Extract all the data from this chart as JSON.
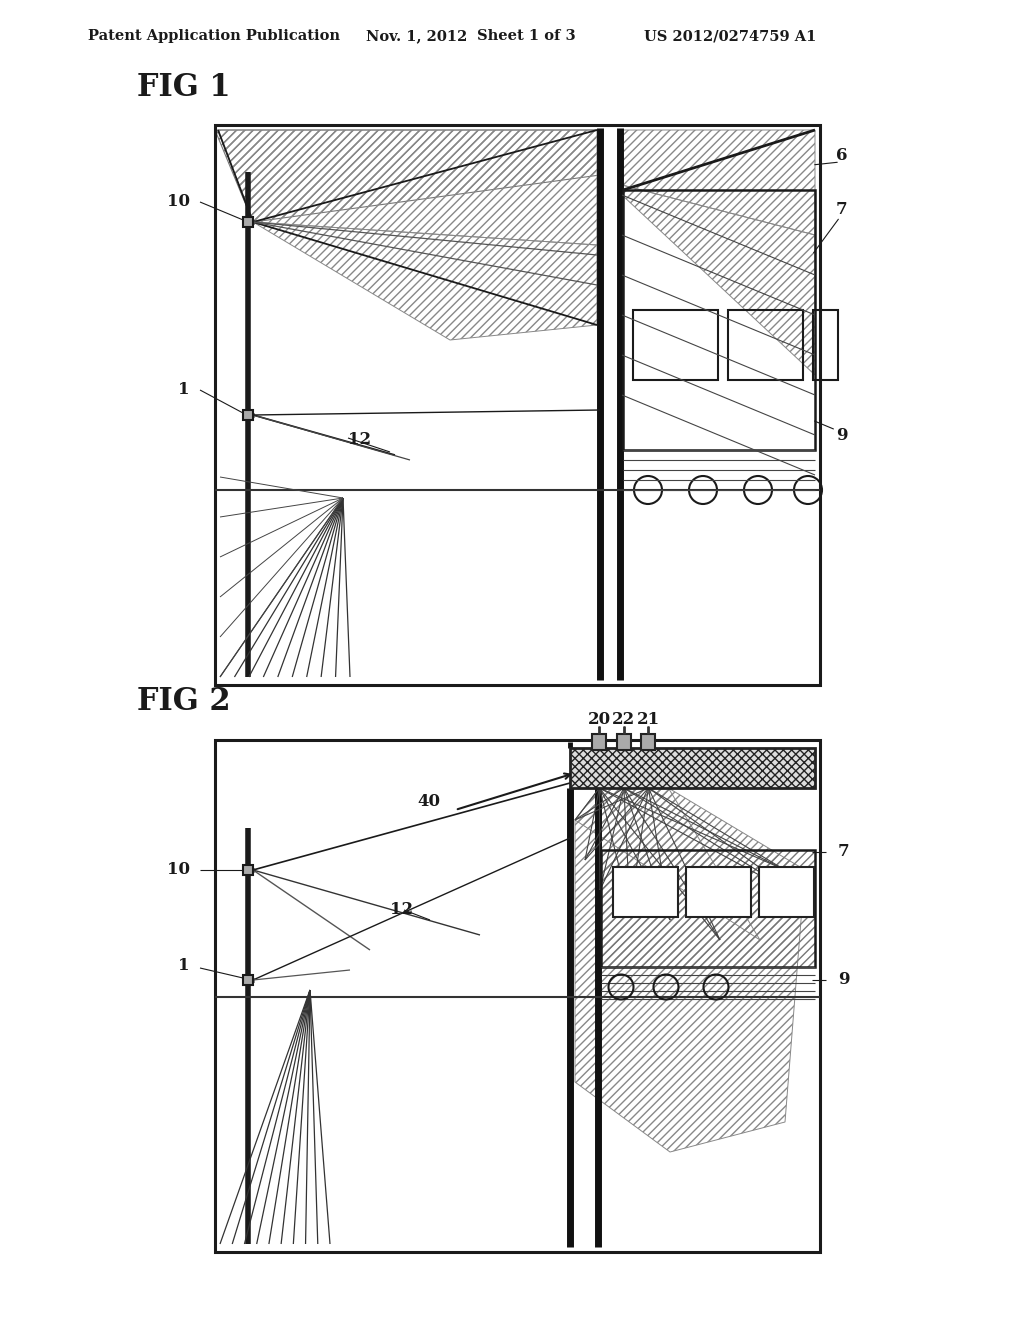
{
  "bg_color": "#ffffff",
  "lc": "#1a1a1a",
  "header_text1": "Patent Application Publication",
  "header_text2": "Nov. 1, 2012",
  "header_text3": "Sheet 1 of 3",
  "header_text4": "US 2012/0274759 A1",
  "fig1_label": "FIG 1",
  "fig2_label": "FIG 2"
}
